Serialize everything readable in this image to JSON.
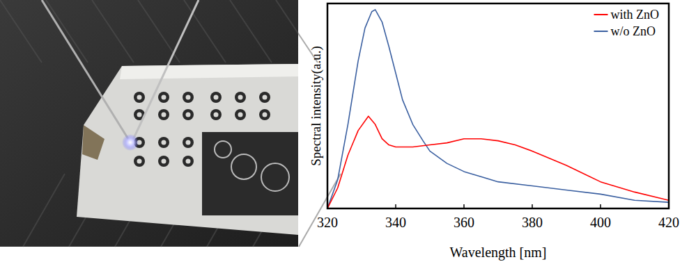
{
  "chart_data": {
    "type": "line",
    "x_label": "Wavelength [nm]",
    "y_label": "Spectral  intensity(a.u.)",
    "xlim": [
      320,
      420
    ],
    "xticks": [
      320,
      340,
      360,
      380,
      400,
      420
    ],
    "ylim": [
      0,
      1
    ],
    "yticks": [],
    "tick_labels": "x",
    "legend": "upper right",
    "series": [
      {
        "name": "with ZnO",
        "color": "#ff0000",
        "x": [
          320,
          323,
          326,
          329,
          332,
          334,
          336,
          338,
          340,
          345,
          350,
          355,
          360,
          365,
          370,
          375,
          380,
          390,
          400,
          410,
          420
        ],
        "values": [
          0.0,
          0.1,
          0.26,
          0.38,
          0.45,
          0.41,
          0.34,
          0.31,
          0.3,
          0.3,
          0.31,
          0.32,
          0.34,
          0.34,
          0.33,
          0.31,
          0.28,
          0.21,
          0.13,
          0.08,
          0.04
        ]
      },
      {
        "name": "w/o ZnO",
        "color": "#3a5fa0",
        "x": [
          320,
          323,
          326,
          329,
          331,
          333,
          334,
          336,
          338,
          340,
          342,
          345,
          348,
          350,
          355,
          360,
          370,
          380,
          390,
          400,
          410,
          420
        ],
        "values": [
          0.0,
          0.14,
          0.41,
          0.72,
          0.88,
          0.96,
          0.97,
          0.91,
          0.79,
          0.66,
          0.53,
          0.41,
          0.33,
          0.28,
          0.22,
          0.18,
          0.13,
          0.11,
          0.09,
          0.07,
          0.04,
          0.03
        ]
      }
    ]
  }
}
